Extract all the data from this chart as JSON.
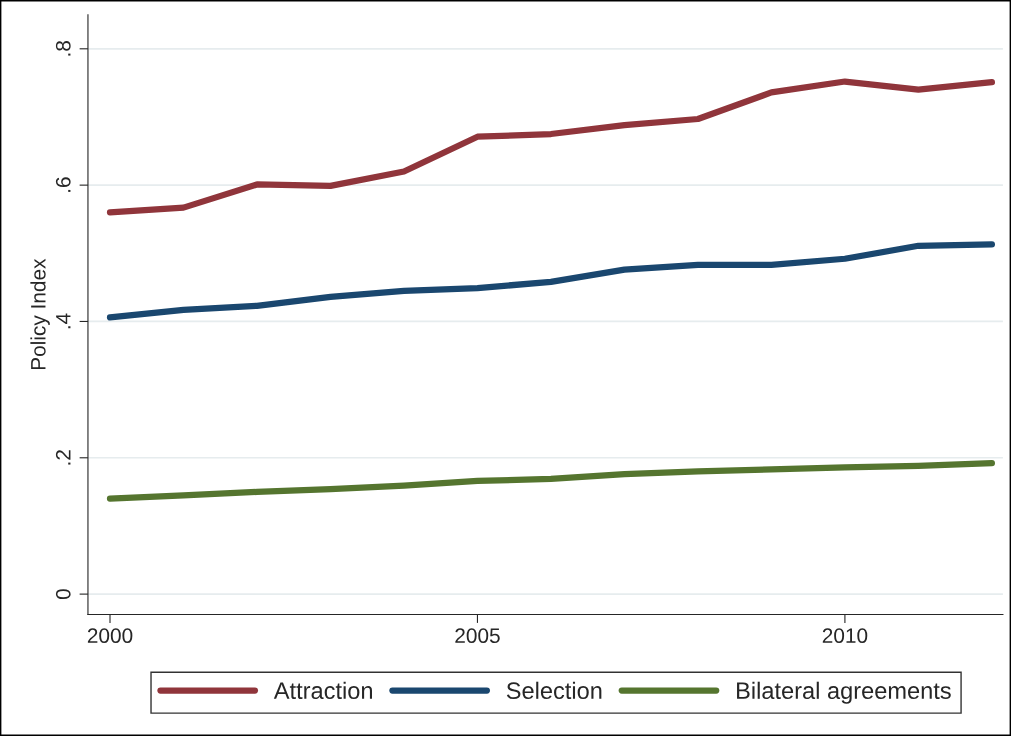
{
  "chart_data": {
    "type": "line",
    "ylabel": "Policy Index",
    "x": [
      2000,
      2001,
      2002,
      2003,
      2004,
      2005,
      2006,
      2007,
      2008,
      2009,
      2010,
      2011,
      2012
    ],
    "series": [
      {
        "name": "Attraction",
        "color": "#90353b",
        "values": [
          0.56,
          0.567,
          0.601,
          0.599,
          0.62,
          0.671,
          0.675,
          0.688,
          0.697,
          0.736,
          0.752,
          0.74,
          0.751
        ]
      },
      {
        "name": "Selection",
        "color": "#1a476f",
        "values": [
          0.406,
          0.417,
          0.423,
          0.436,
          0.445,
          0.449,
          0.458,
          0.476,
          0.483,
          0.483,
          0.492,
          0.511,
          0.513
        ]
      },
      {
        "name": "Bilateral agreements",
        "color": "#55752f",
        "values": [
          0.14,
          0.145,
          0.15,
          0.154,
          0.159,
          0.166,
          0.169,
          0.176,
          0.18,
          0.183,
          0.186,
          0.188,
          0.192
        ]
      }
    ],
    "xlim": [
      1999.7,
      2012.15
    ],
    "xticks": [
      2000,
      2005,
      2010
    ],
    "ylim": [
      -0.03,
      0.85
    ],
    "yticks": [
      {
        "value": 0,
        "label": "0"
      },
      {
        "value": 0.2,
        "label": ".2"
      },
      {
        "value": 0.4,
        "label": ".4"
      },
      {
        "value": 0.6,
        "label": ".6"
      },
      {
        "value": 0.8,
        "label": ".8"
      }
    ],
    "grid": "y",
    "legend": "bottom",
    "marker": "none",
    "line_style": "solid"
  }
}
